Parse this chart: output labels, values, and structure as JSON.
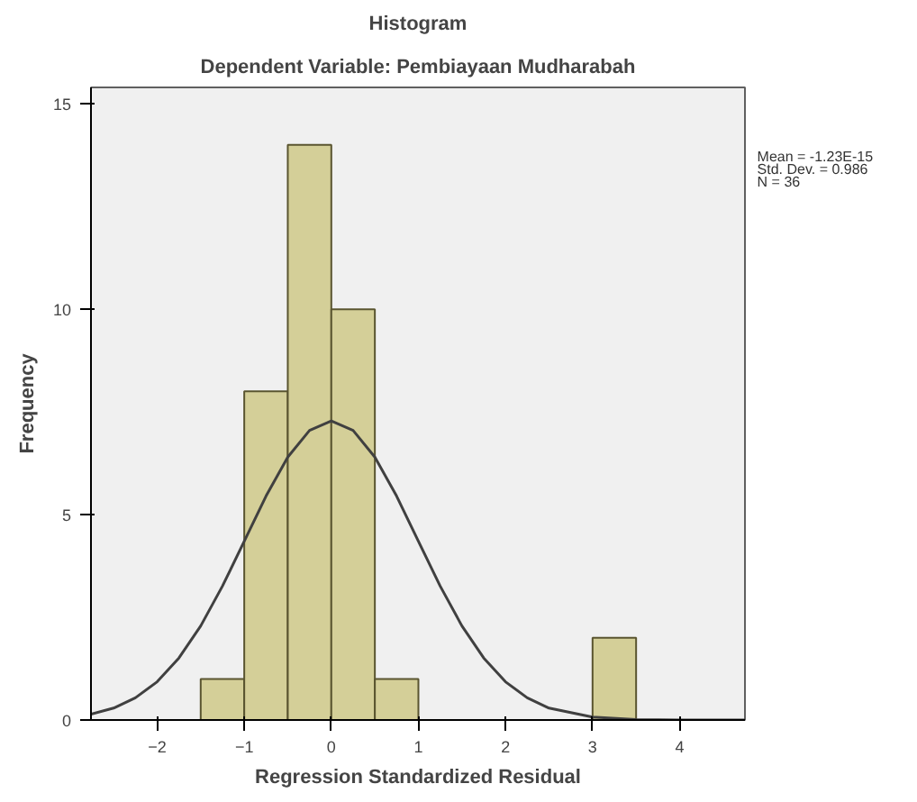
{
  "chart_data": {
    "type": "histogram",
    "title": "Histogram",
    "subtitle": "Dependent Variable: Pembiayaan Mudharabah",
    "xlabel": "Regression Standardized Residual",
    "ylabel": "Frequency",
    "bins": [
      -1.5,
      -1.0,
      -0.5,
      0.0,
      0.5,
      1.0,
      1.5,
      2.0,
      2.5,
      3.0,
      3.5
    ],
    "values": [
      1,
      8,
      14,
      10,
      1,
      0,
      0,
      0,
      0,
      2
    ],
    "color": "#d4cf98",
    "series": [
      {
        "type": "line",
        "color": "#404040",
        "x": [
          -2.76,
          -2.5,
          -2.25,
          -2.0,
          -1.75,
          -1.5,
          -1.25,
          -1.0,
          -0.75,
          -0.5,
          -0.25,
          0.0,
          0.25,
          0.5,
          0.75,
          1.0,
          1.25,
          1.5,
          1.75,
          2.0,
          2.25,
          2.5,
          3.0,
          3.5,
          4.0,
          4.75
        ],
        "values": [
          0.14,
          0.29,
          0.54,
          0.93,
          1.51,
          2.29,
          3.26,
          4.35,
          5.45,
          6.4,
          7.05,
          7.28,
          7.05,
          6.4,
          5.45,
          4.35,
          3.26,
          2.29,
          1.51,
          0.93,
          0.54,
          0.29,
          0.07,
          0.01,
          0.0,
          0.0
        ]
      }
    ],
    "annotations": [
      "Mean = -1.23E-15",
      "Std. Dev. = 0.986",
      "N = 36"
    ],
    "xlim": [
      -2.76,
      4.75
    ],
    "ylim": [
      0,
      15.4
    ],
    "xticks": [
      -2,
      -1,
      0,
      1,
      2,
      3,
      4
    ],
    "yticks": [
      0,
      5,
      10,
      15
    ],
    "grid": false
  }
}
